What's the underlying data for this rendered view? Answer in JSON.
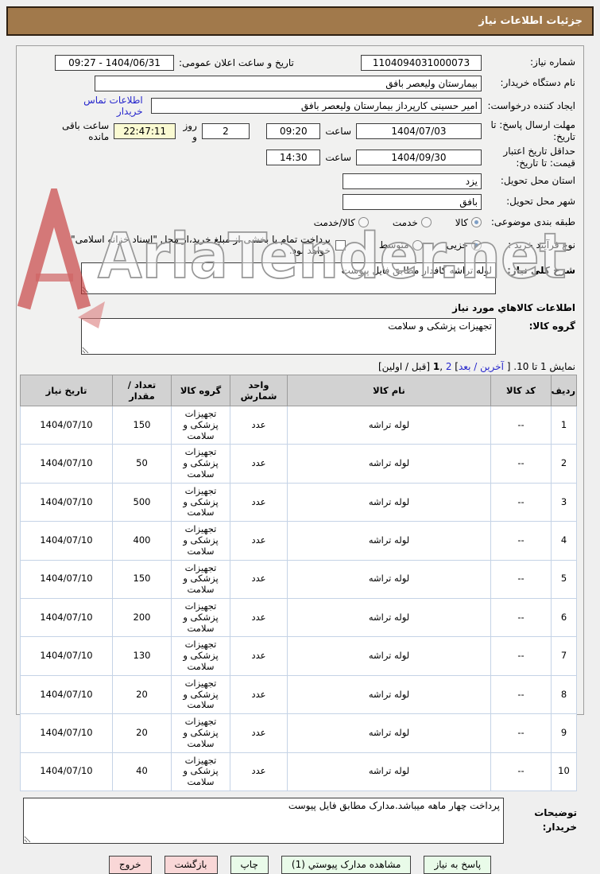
{
  "titlebar": {
    "title": "جزئیات اطلاعات نیاز"
  },
  "watermark": {
    "text": "AriaTender.net"
  },
  "form": {
    "need_number": {
      "label": "شماره نیاز:",
      "value": "1104094031000073"
    },
    "announce": {
      "label": "تاریخ و ساعت اعلان عمومی:",
      "value": "1404/06/31 - 09:27"
    },
    "buyer_name": {
      "label": "نام دستگاه خریدار:",
      "value": "بیمارستان ولیعصر بافق"
    },
    "creator": {
      "label": "ایجاد کننده درخواست:",
      "value": "امیر حسینی کارپرداز بیمارستان ولیعصر بافق"
    },
    "contact_link": "اطلاعات تماس خریدار",
    "deadline": {
      "label": "مهلت ارسال پاسخ: تا تاریخ:",
      "date": "1404/07/03",
      "hour_label": "ساعت",
      "time": "09:20"
    },
    "remaining": {
      "days": "2",
      "days_label": "روز و",
      "time": "22:47:11",
      "suffix": "ساعت باقی مانده"
    },
    "validity": {
      "label": "حداقل تاریخ اعتبار قیمت: تا تاریخ:",
      "date": "1404/09/30",
      "hour_label": "ساعت",
      "time": "14:30"
    },
    "province": {
      "label": "استان محل تحویل:",
      "value": "یزد"
    },
    "city": {
      "label": "شهر محل تحویل:",
      "value": "بافق"
    },
    "category": {
      "label": "طبقه بندی موضوعی:",
      "options": [
        "کالا",
        "خدمت",
        "کالا/خدمت"
      ],
      "selected": "کالا"
    },
    "process": {
      "label": "نوع فرآیند خرید :",
      "options": [
        "جزیی",
        "متوسط"
      ],
      "selected": "جزیی",
      "treasury_text": "پرداخت تمام یا بخشی از مبلغ خرید،از محل \"اسناد خزانه اسلامی\" خواهد بود."
    }
  },
  "need_desc": {
    "label": "شرح کلي نیاز:",
    "value": "لوله تراشه کافدار مطابق فایل پیوست"
  },
  "items_title": "اطلاعات کالاهاي مورد نیاز",
  "item_group": {
    "label": "گروه کالا:",
    "value": "تجهیزات پزشکی و سلامت"
  },
  "pagination": {
    "prefix": "نمایش 1 تا 10. [ ",
    "next_link": "آخرین / بعد",
    "bracket": "] ",
    "page2": "2",
    "comma": " ,",
    "page1": "1",
    "suffix": " [قبل / اولین]"
  },
  "table": {
    "headers": [
      "ردیف",
      "کد کالا",
      "نام کالا",
      "واحد شمارش",
      "گروه کالا",
      "تعداد / مقدار",
      "تاریخ نیاز"
    ],
    "rows": [
      [
        "1",
        "--",
        "لوله تراشه",
        "عدد",
        "تجهیزات پزشکی و سلامت",
        "150",
        "1404/07/10"
      ],
      [
        "2",
        "--",
        "لوله تراشه",
        "عدد",
        "تجهیزات پزشکی و سلامت",
        "50",
        "1404/07/10"
      ],
      [
        "3",
        "--",
        "لوله تراشه",
        "عدد",
        "تجهیزات پزشکی و سلامت",
        "500",
        "1404/07/10"
      ],
      [
        "4",
        "--",
        "لوله تراشه",
        "عدد",
        "تجهیزات پزشکی و سلامت",
        "400",
        "1404/07/10"
      ],
      [
        "5",
        "--",
        "لوله تراشه",
        "عدد",
        "تجهیزات پزشکی و سلامت",
        "150",
        "1404/07/10"
      ],
      [
        "6",
        "--",
        "لوله تراشه",
        "عدد",
        "تجهیزات پزشکی و سلامت",
        "200",
        "1404/07/10"
      ],
      [
        "7",
        "--",
        "لوله تراشه",
        "عدد",
        "تجهیزات پزشکی و سلامت",
        "130",
        "1404/07/10"
      ],
      [
        "8",
        "--",
        "لوله تراشه",
        "عدد",
        "تجهیزات پزشکی و سلامت",
        "20",
        "1404/07/10"
      ],
      [
        "9",
        "--",
        "لوله تراشه",
        "عدد",
        "تجهیزات پزشکی و سلامت",
        "20",
        "1404/07/10"
      ],
      [
        "10",
        "--",
        "لوله تراشه",
        "عدد",
        "تجهیزات پزشکی و سلامت",
        "40",
        "1404/07/10"
      ]
    ]
  },
  "notes": {
    "label_line1": "توضیحات",
    "label_line2": "خریدار:",
    "value": "پرداخت چهار ماهه میباشد.مدارک مطابق فایل پیوست"
  },
  "buttons": [
    {
      "name": "reply-to-need-button",
      "label": "پاسخ به نیاز",
      "style": "green"
    },
    {
      "name": "view-attachments-button",
      "label": "مشاهده مدارک پیوستي (1)",
      "style": "green"
    },
    {
      "name": "print-button",
      "label": "چاپ",
      "style": "green"
    },
    {
      "name": "back-button",
      "label": "بازگشت",
      "style": "pink"
    },
    {
      "name": "exit-button",
      "label": "خروج",
      "style": "pink"
    }
  ]
}
